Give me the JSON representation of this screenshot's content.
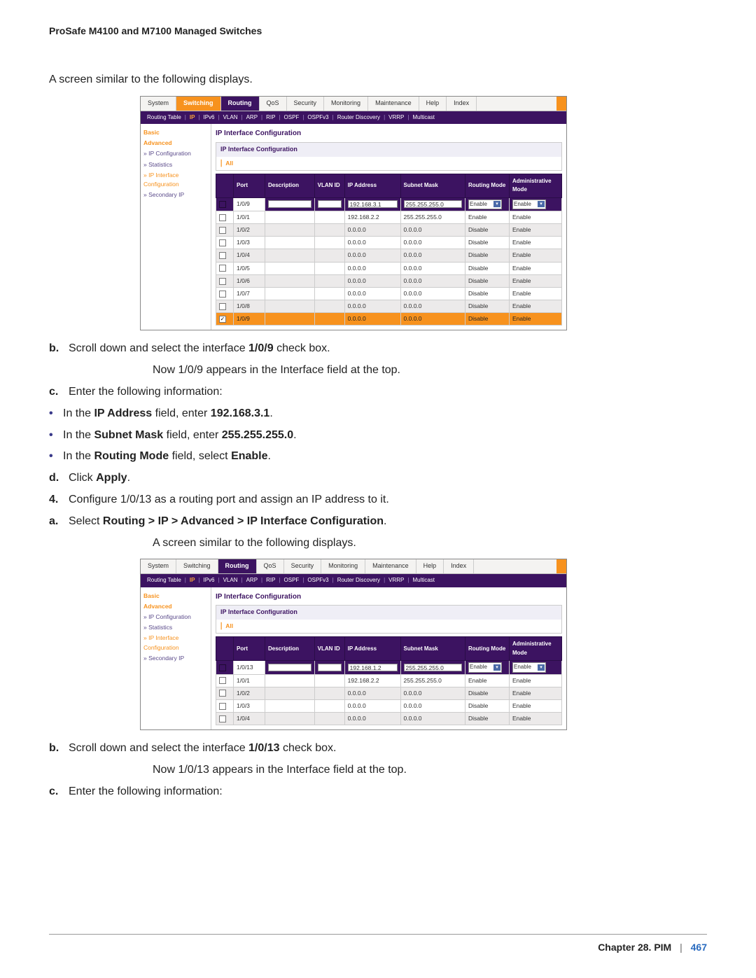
{
  "doc_title": "ProSafe M4100 and M7100 Managed Switches",
  "text": {
    "similar1": "A screen similar to the following displays.",
    "b1": "Scroll down and select the interface ",
    "b1_bold": "1/0/9",
    "b1_tail": " check box.",
    "b1_line2": "Now 1/0/9 appears in the Interface field at the top.",
    "c1": "Enter the following information:",
    "c1_bul1_pre": "In the ",
    "c1_bul1_b": "IP Address",
    "c1_bul1_mid": " field, enter ",
    "c1_bul1_v": "192.168.3.1",
    "c1_bul1_post": ".",
    "c1_bul2_pre": "In the ",
    "c1_bul2_b": "Subnet Mask",
    "c1_bul2_mid": " field, enter ",
    "c1_bul2_v": "255.255.255.0",
    "c1_bul2_post": ".",
    "c1_bul3_pre": "In the ",
    "c1_bul3_b": "Routing Mode",
    "c1_bul3_mid": " field, select ",
    "c1_bul3_v": "Enable",
    "c1_bul3_post": ".",
    "d1_pre": "Click ",
    "d1_b": "Apply",
    "d1_post": ".",
    "step4": "Configure 1/0/13 as a routing port and assign an IP address to it.",
    "a2_pre": "Select ",
    "a2_b": "Routing > IP > Advanced > IP Interface Configuration",
    "a2_post": ".",
    "similar2": "A screen similar to the following displays.",
    "b2": "Scroll down and select the interface ",
    "b2_bold": "1/0/13",
    "b2_tail": " check box.",
    "b2_line2": "Now 1/0/13 appears in the Interface field at the top.",
    "c2": "Enter the following information:"
  },
  "ui_common": {
    "top_tabs": [
      "System",
      "Switching",
      "Routing",
      "QoS",
      "Security",
      "Monitoring",
      "Maintenance",
      "Help",
      "Index"
    ],
    "sub_tabs": [
      "Routing Table",
      "IP",
      "IPv6",
      "VLAN",
      "ARP",
      "RIP",
      "OSPF",
      "OSPFv3",
      "Router Discovery",
      "VRRP",
      "Multicast"
    ],
    "side": {
      "basic": "Basic",
      "advanced": "Advanced",
      "ipconf": "» IP Configuration",
      "stats": "» Statistics",
      "ipint": "» IP Interface Configuration",
      "secip": "» Secondary IP"
    },
    "title": "IP Interface Configuration",
    "subtitle": "IP Interface Configuration",
    "all": "All",
    "columns": [
      "",
      "Port",
      "Description",
      "VLAN ID",
      "IP Address",
      "Subnet Mask",
      "Routing Mode",
      "Administrative Mode"
    ],
    "enable": "Enable",
    "disable": "Disable"
  },
  "shot1": {
    "active_top": "Switching",
    "edit": {
      "port": "1/0/9",
      "ip": "192.168.3.1",
      "mask": "255.255.255.0",
      "rm": "Enable",
      "am": "Enable"
    },
    "rows": [
      {
        "port": "1/0/1",
        "ip": "192.168.2.2",
        "mask": "255.255.255.0",
        "rm": "Enable",
        "am": "Enable",
        "alt": false
      },
      {
        "port": "1/0/2",
        "ip": "0.0.0.0",
        "mask": "0.0.0.0",
        "rm": "Disable",
        "am": "Enable",
        "alt": true
      },
      {
        "port": "1/0/3",
        "ip": "0.0.0.0",
        "mask": "0.0.0.0",
        "rm": "Disable",
        "am": "Enable",
        "alt": false
      },
      {
        "port": "1/0/4",
        "ip": "0.0.0.0",
        "mask": "0.0.0.0",
        "rm": "Disable",
        "am": "Enable",
        "alt": true
      },
      {
        "port": "1/0/5",
        "ip": "0.0.0.0",
        "mask": "0.0.0.0",
        "rm": "Disable",
        "am": "Enable",
        "alt": false
      },
      {
        "port": "1/0/6",
        "ip": "0.0.0.0",
        "mask": "0.0.0.0",
        "rm": "Disable",
        "am": "Enable",
        "alt": true
      },
      {
        "port": "1/0/7",
        "ip": "0.0.0.0",
        "mask": "0.0.0.0",
        "rm": "Disable",
        "am": "Enable",
        "alt": false
      },
      {
        "port": "1/0/8",
        "ip": "0.0.0.0",
        "mask": "0.0.0.0",
        "rm": "Disable",
        "am": "Enable",
        "alt": true
      }
    ],
    "selected": {
      "port": "1/0/9",
      "ip": "0.0.0.0",
      "mask": "0.0.0.0",
      "rm": "Disable",
      "am": "Enable"
    }
  },
  "shot2": {
    "active_top": "Routing",
    "edit": {
      "port": "1/0/13",
      "ip": "192.168.1.2",
      "mask": "255.255.255.0",
      "rm": "Enable",
      "am": "Enable"
    },
    "rows": [
      {
        "port": "1/0/1",
        "ip": "192.168.2.2",
        "mask": "255.255.255.0",
        "rm": "Enable",
        "am": "Enable",
        "alt": false
      },
      {
        "port": "1/0/2",
        "ip": "0.0.0.0",
        "mask": "0.0.0.0",
        "rm": "Disable",
        "am": "Enable",
        "alt": true
      },
      {
        "port": "1/0/3",
        "ip": "0.0.0.0",
        "mask": "0.0.0.0",
        "rm": "Disable",
        "am": "Enable",
        "alt": false
      },
      {
        "port": "1/0/4",
        "ip": "0.0.0.0",
        "mask": "0.0.0.0",
        "rm": "Disable",
        "am": "Enable",
        "alt": true
      }
    ]
  },
  "footer": {
    "chapter": "Chapter 28.  PIM",
    "page": "467"
  }
}
